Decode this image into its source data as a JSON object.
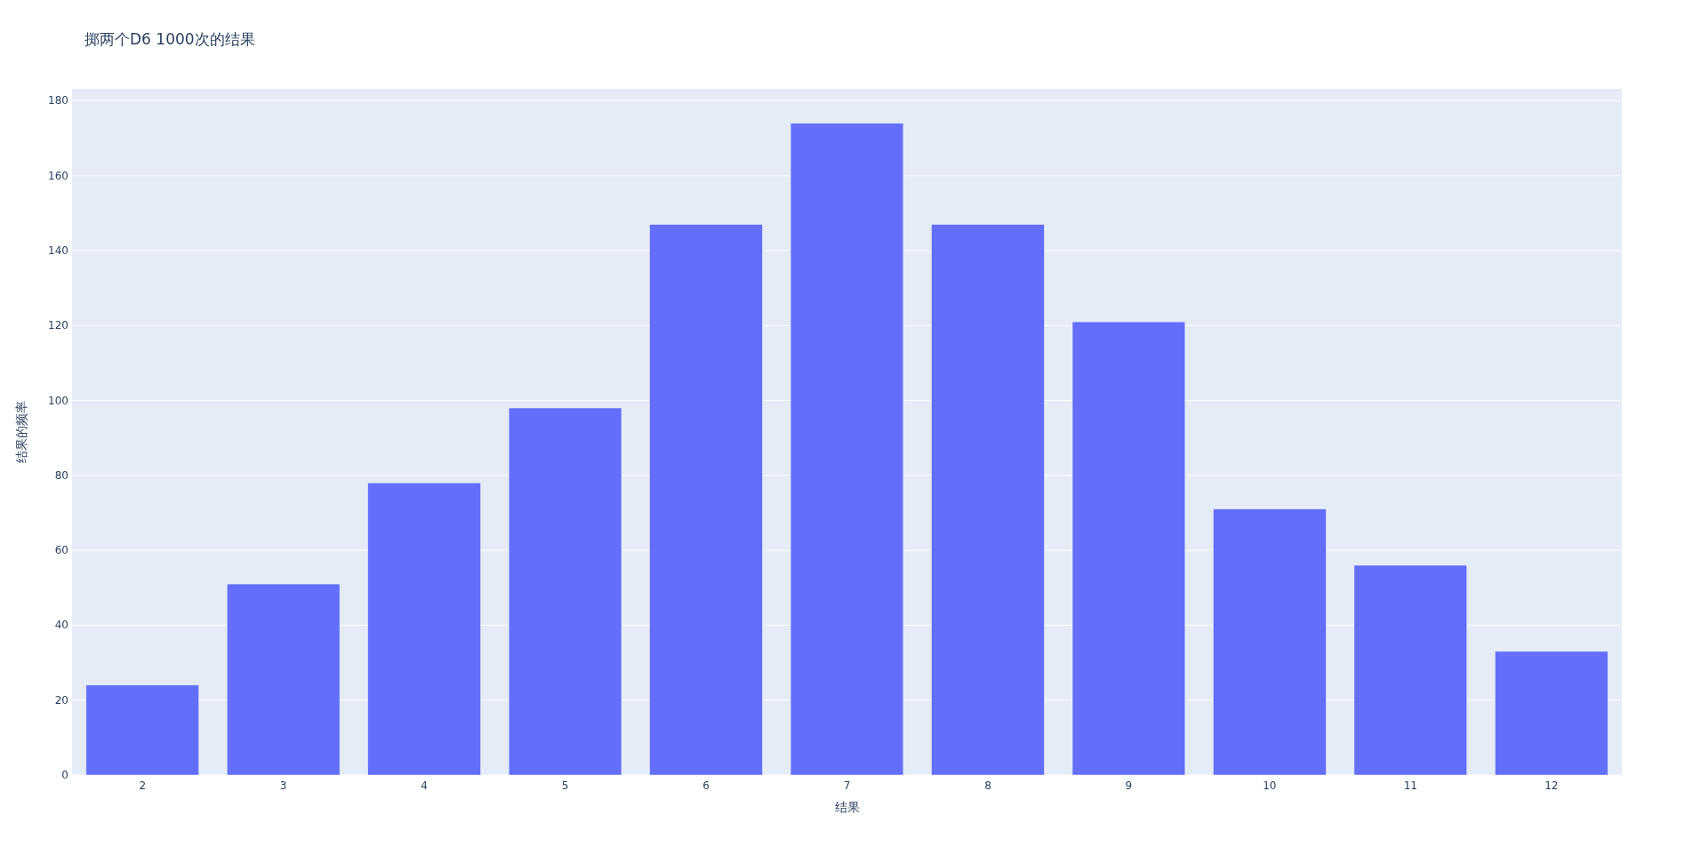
{
  "chart_data": {
    "type": "bar",
    "title": "掷两个D6 1000次的结果",
    "xlabel": "结果",
    "ylabel": "结果的频率",
    "categories": [
      "2",
      "3",
      "4",
      "5",
      "6",
      "7",
      "8",
      "9",
      "10",
      "11",
      "12"
    ],
    "values": [
      24,
      51,
      78,
      98,
      147,
      174,
      147,
      121,
      71,
      56,
      33
    ],
    "color": "#636efa",
    "ylim": [
      0,
      183.2
    ],
    "yticks": [
      0,
      20,
      40,
      60,
      80,
      100,
      120,
      140,
      160,
      180
    ],
    "grid": "y"
  }
}
